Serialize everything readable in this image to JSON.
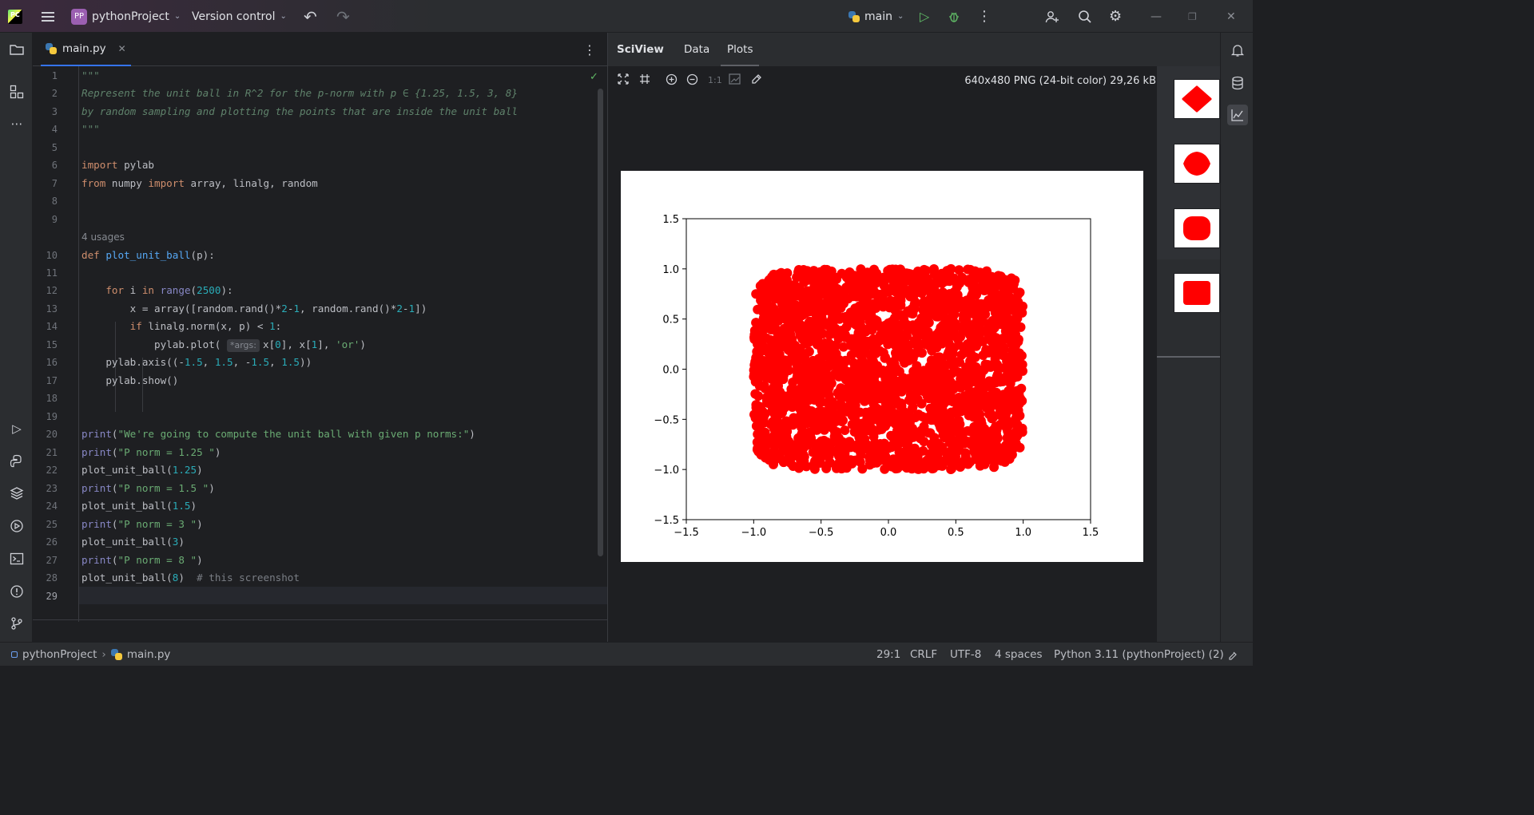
{
  "titlebar": {
    "project_badge": "PP",
    "project_name": "pythonProject",
    "vcs_label": "Version control",
    "branch": "main"
  },
  "editor": {
    "tab_label": "main.py",
    "usages_label": "4 usages",
    "param_hint": "*args:",
    "line_numbers": [
      "1",
      "2",
      "3",
      "4",
      "5",
      "6",
      "7",
      "8",
      "9",
      "10",
      "11",
      "12",
      "13",
      "14",
      "15",
      "16",
      "17",
      "18",
      "19",
      "20",
      "21",
      "22",
      "23",
      "24",
      "25",
      "26",
      "27",
      "28",
      "29"
    ],
    "lines": {
      "l1": "\"\"\"",
      "l2": "Represent the unit ball in R^2 for the p-norm with p ∈ {1.25, 1.5, 3, 8}",
      "l3": "by random sampling and plotting the points that are inside the unit ball",
      "l4": "\"\"\"",
      "l6": "import pylab",
      "l7": "from numpy import array, linalg, random",
      "l10": "def plot_unit_ball(p):",
      "l12": "    for i in range(2500):",
      "l13": "        x = array([random.rand()*2-1, random.rand()*2-1])",
      "l14": "            if linalg.norm(x, p) < 1:",
      "l15": "                pylab.plot( *args: x[0], x[1], 'or')",
      "l16": "    pylab.axis((-1.5, 1.5, -1.5, 1.5))",
      "l17": "    pylab.show()",
      "l20": "print(\"We're going to compute the unit ball with given p norms:\")",
      "l21": "print(\"P norm = 1.25 \")",
      "l22": "plot_unit_ball(1.25)",
      "l23": "print(\"P norm = 1.5 \")",
      "l24": "plot_unit_ball(1.5)",
      "l25": "print(\"P norm = 3 \")",
      "l26": "plot_unit_ball(3)",
      "l27": "print(\"P norm = 8 \")",
      "l28": "plot_unit_ball(8)  # this screenshot"
    }
  },
  "sciview": {
    "title": "SciView",
    "tabs": [
      "Data",
      "Plots"
    ],
    "active_tab": "Plots",
    "zoom_actual_label": "1:1",
    "image_info": "640x480 PNG (24-bit color) 29,26 kB"
  },
  "statusbar": {
    "project": "pythonProject",
    "file": "main.py",
    "position": "29:1",
    "line_separator": "CRLF",
    "encoding": "UTF-8",
    "indent": "4 spaces",
    "interpreter": "Python 3.11 (pythonProject) (2)"
  },
  "colors": {
    "accent": "#3574f0",
    "run_green": "#5fb865",
    "marker_red": "#ff0000"
  },
  "chart_data": {
    "type": "scatter",
    "title": "",
    "xlabel": "",
    "ylabel": "",
    "xlim": [
      -1.5,
      1.5
    ],
    "ylim": [
      -1.5,
      1.5
    ],
    "xticks": [
      "−1.5",
      "−1.0",
      "−0.5",
      "0.0",
      "0.5",
      "1.0",
      "1.5"
    ],
    "yticks": [
      "−1.5",
      "−1.0",
      "−0.5",
      "0.0",
      "0.5",
      "1.0",
      "1.5"
    ],
    "series": [
      {
        "marker": "o",
        "color": "#ff0000",
        "sampling": "uniform random points in [-1,1]^2 with ||x||_8 < 1",
        "p": 8,
        "n_samples": 2500
      }
    ],
    "grid": false
  }
}
